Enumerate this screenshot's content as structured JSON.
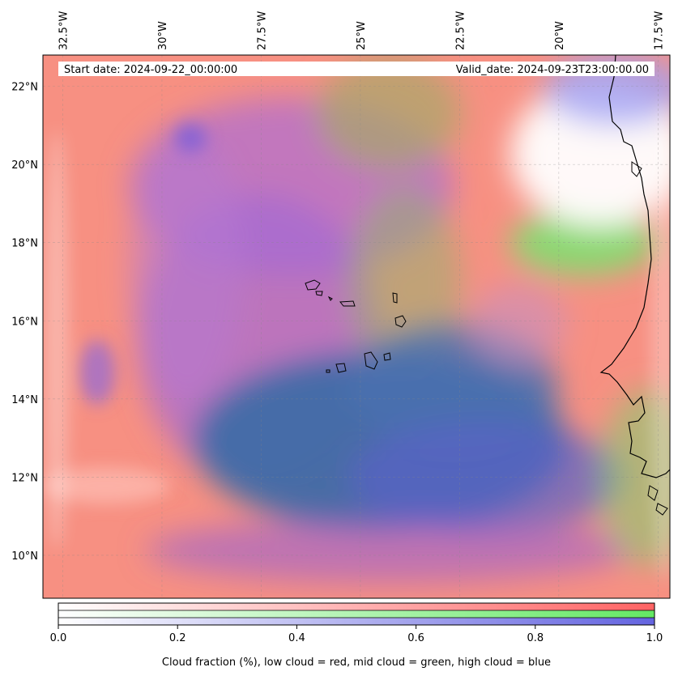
{
  "header": {
    "start_date": "Start date: 2024-09-22_00:00:00",
    "valid_date": "Valid_date: 2024-09-23T23:00:00.00"
  },
  "map": {
    "lon_range": [
      -33,
      -17.2
    ],
    "lat_range": [
      8.9,
      22.8
    ],
    "lon_ticks": [
      {
        "value": -32.5,
        "label": "32.5°W"
      },
      {
        "value": -30.0,
        "label": "30°W"
      },
      {
        "value": -27.5,
        "label": "27.5°W"
      },
      {
        "value": -25.0,
        "label": "25°W"
      },
      {
        "value": -22.5,
        "label": "22.5°W"
      },
      {
        "value": -20.0,
        "label": "20°W"
      },
      {
        "value": -17.5,
        "label": "17.5°W"
      }
    ],
    "lat_ticks": [
      {
        "value": 22,
        "label": "22°N"
      },
      {
        "value": 20,
        "label": "20°N"
      },
      {
        "value": 18,
        "label": "18°N"
      },
      {
        "value": 16,
        "label": "16°N"
      },
      {
        "value": 14,
        "label": "14°N"
      },
      {
        "value": 12,
        "label": "12°N"
      },
      {
        "value": 10,
        "label": "10°N"
      }
    ],
    "gridlines": true,
    "features": [
      "coastline-west-africa",
      "cape-verde-islands"
    ]
  },
  "colorbar": {
    "ticks": [
      "0.0",
      "0.2",
      "0.4",
      "0.6",
      "0.8",
      "1.0"
    ],
    "label": "Cloud fraction (%), low cloud = red, mid cloud = green, high cloud = blue",
    "colors": {
      "low": "#ff6464",
      "mid": "#64e864",
      "high": "#6464e0"
    }
  },
  "colors": {
    "low_cloud": "#ff7f7f",
    "mid_cloud": "#7fe07f",
    "high_cloud": "#7f7fe8",
    "overlap_blue": "#3f6fa8",
    "clear": "#ffffff"
  }
}
